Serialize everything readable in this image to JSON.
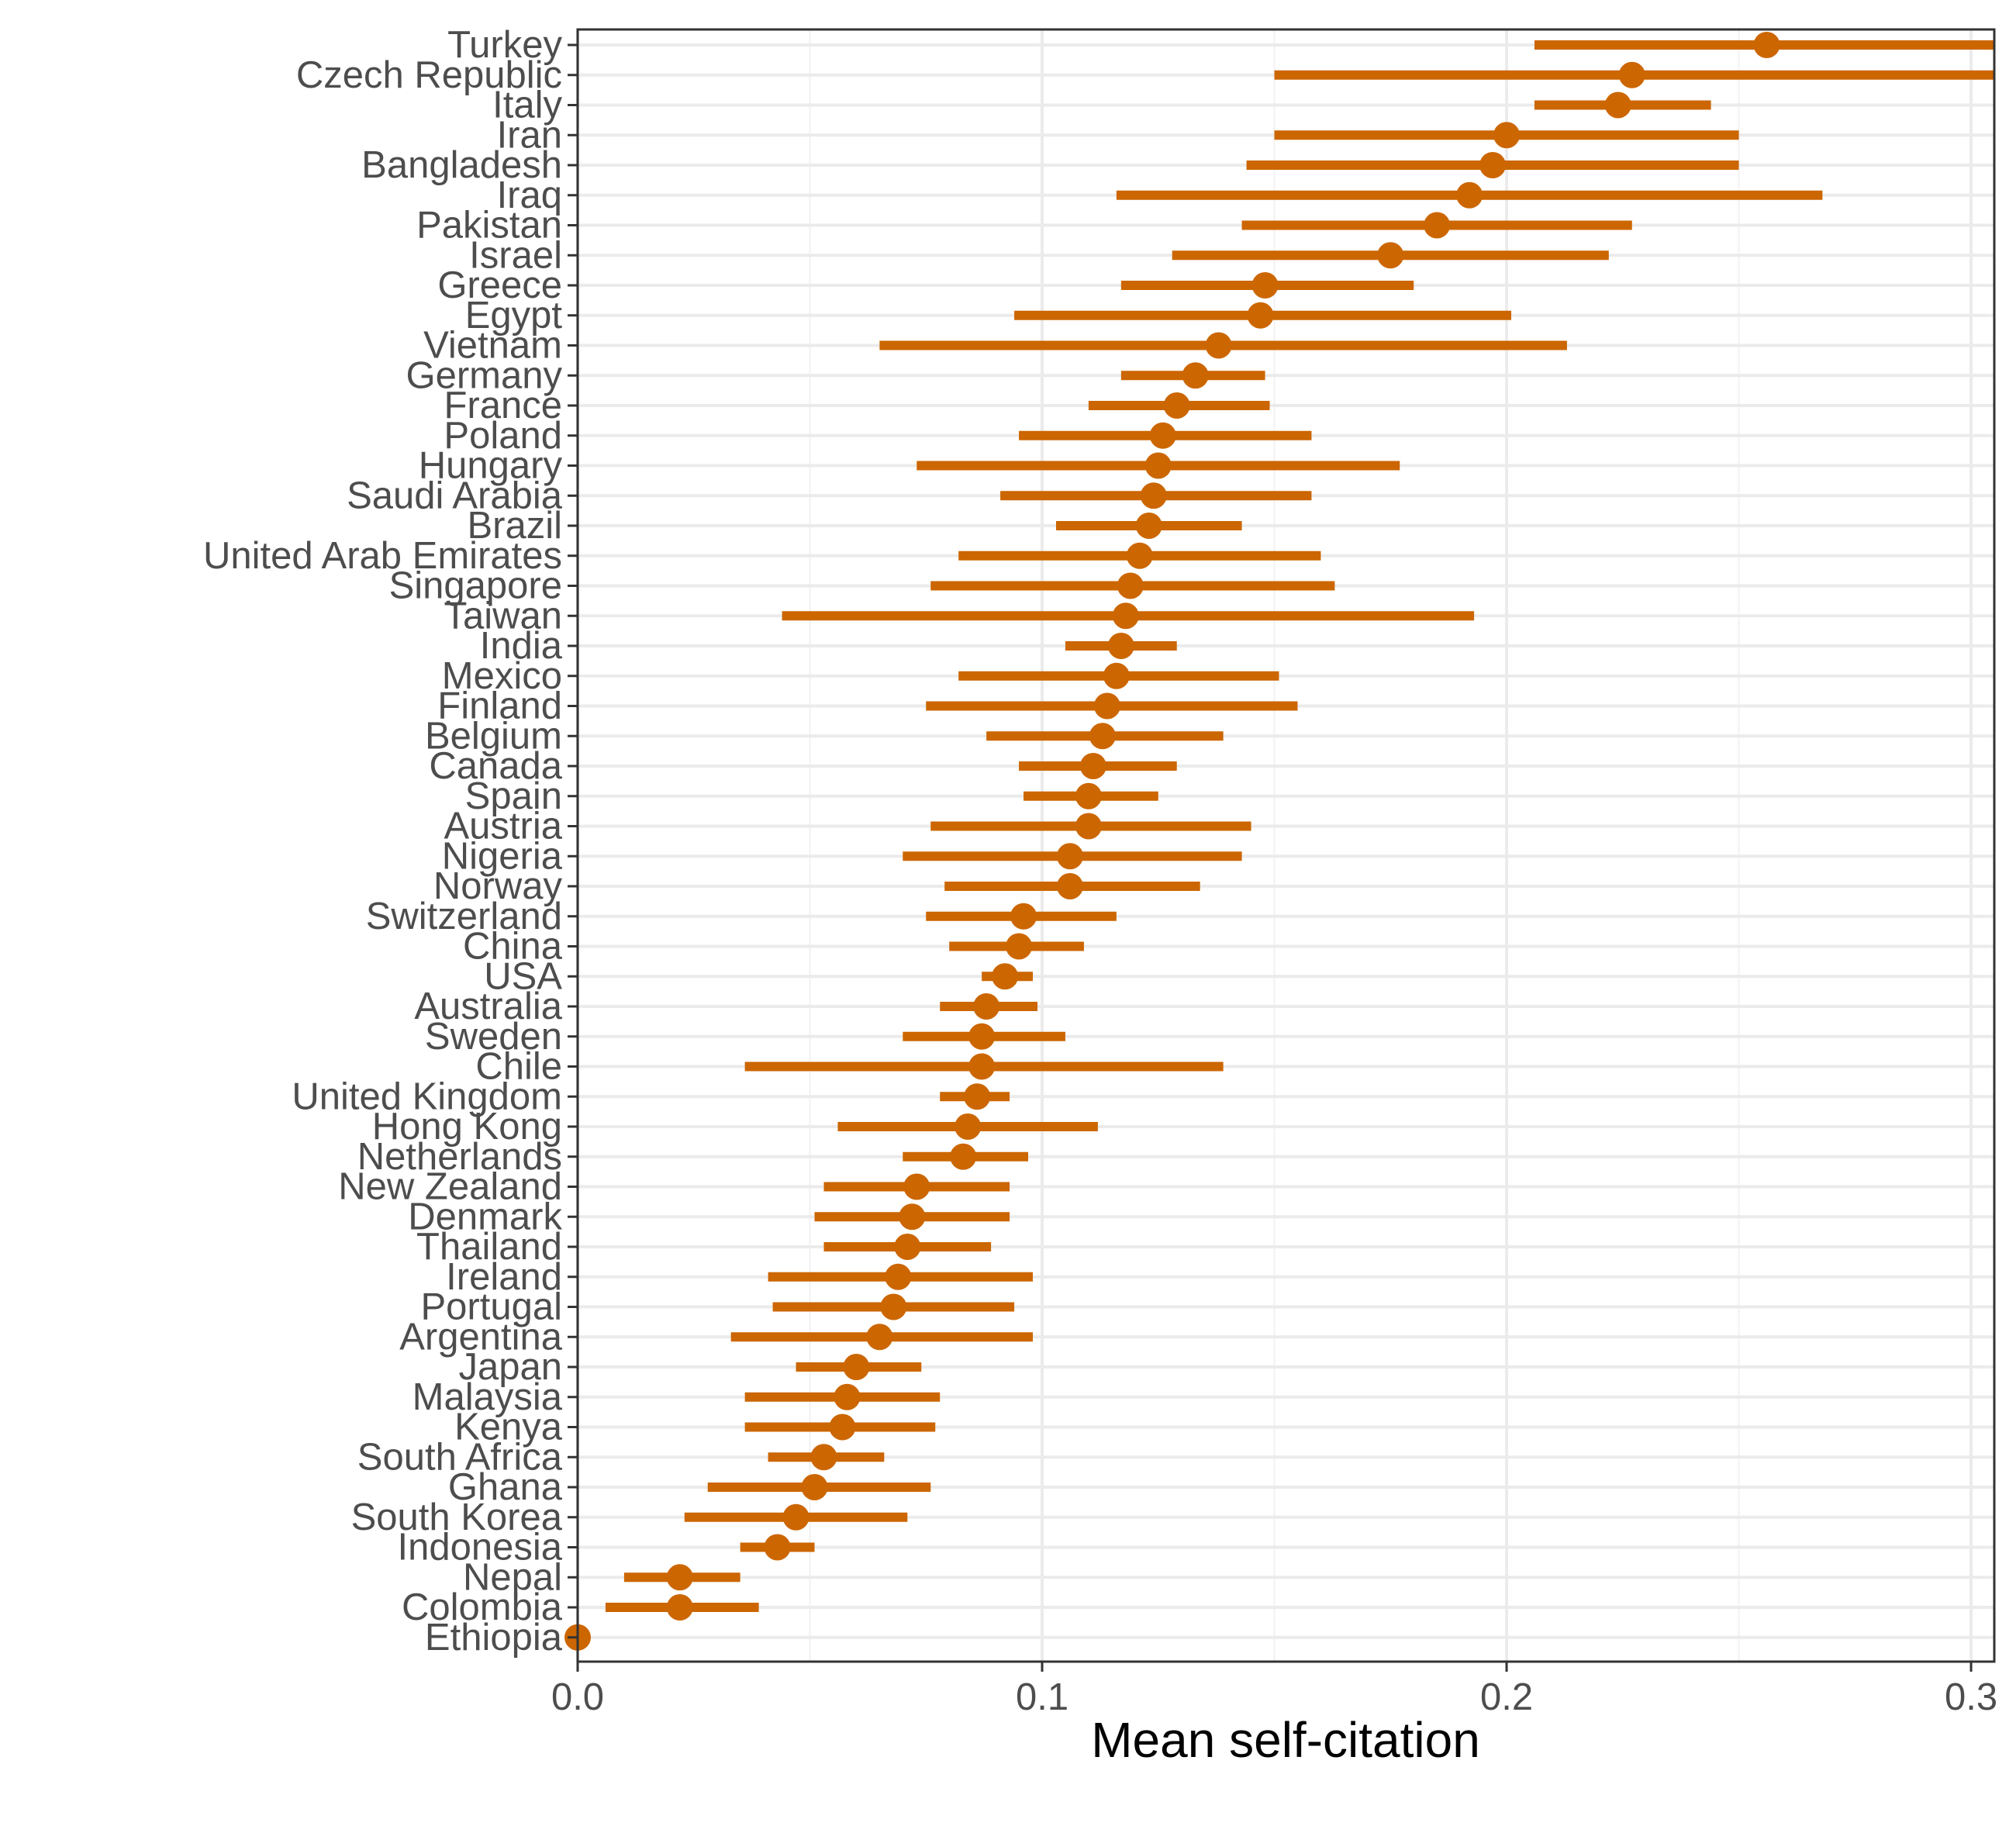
{
  "chart_data": {
    "type": "dot-errorbar",
    "title": "",
    "xlabel": "Mean self-citation",
    "ylabel": "",
    "xlim": [
      0.0,
      0.305
    ],
    "x_ticks": [
      0.0,
      0.1,
      0.2,
      0.3
    ],
    "x_tick_labels": [
      "0.0",
      "0.1",
      "0.2",
      "0.3"
    ],
    "grid": true,
    "legend": "none",
    "colors": {
      "point": "#CC6600",
      "bar": "#CC6600",
      "grid": "#ebebeb",
      "axis": "#333333",
      "text": "#4d4d4d"
    },
    "categories": [
      "Turkey",
      "Czech Republic",
      "Italy",
      "Iran",
      "Bangladesh",
      "Iraq",
      "Pakistan",
      "Israel",
      "Greece",
      "Egypt",
      "Vietnam",
      "Germany",
      "France",
      "Poland",
      "Hungary",
      "Saudi Arabia",
      "Brazil",
      "United Arab Emirates",
      "Singapore",
      "Taiwan",
      "India",
      "Mexico",
      "Finland",
      "Belgium",
      "Canada",
      "Spain",
      "Austria",
      "Nigeria",
      "Norway",
      "Switzerland",
      "China",
      "USA",
      "Australia",
      "Sweden",
      "Chile",
      "United Kingdom",
      "Hong Kong",
      "Netherlands",
      "New Zealand",
      "Denmark",
      "Thailand",
      "Ireland",
      "Portugal",
      "Argentina",
      "Japan",
      "Malaysia",
      "Kenya",
      "South Africa",
      "Ghana",
      "South Korea",
      "Indonesia",
      "Nepal",
      "Colombia",
      "Ethiopia"
    ],
    "values": [
      0.256,
      0.227,
      0.224,
      0.2,
      0.197,
      0.192,
      0.185,
      0.175,
      0.148,
      0.147,
      0.138,
      0.133,
      0.129,
      0.126,
      0.125,
      0.124,
      0.123,
      0.121,
      0.119,
      0.118,
      0.117,
      0.116,
      0.114,
      0.113,
      0.111,
      0.11,
      0.11,
      0.106,
      0.106,
      0.096,
      0.095,
      0.092,
      0.088,
      0.087,
      0.087,
      0.086,
      0.084,
      0.083,
      0.073,
      0.072,
      0.071,
      0.069,
      0.068,
      0.065,
      0.06,
      0.058,
      0.057,
      0.053,
      0.051,
      0.047,
      0.043,
      0.022,
      0.022,
      0.0
    ],
    "lower": [
      0.206,
      0.15,
      0.206,
      0.15,
      0.144,
      0.116,
      0.143,
      0.128,
      0.117,
      0.094,
      0.065,
      0.117,
      0.11,
      0.095,
      0.073,
      0.091,
      0.103,
      0.082,
      0.076,
      0.044,
      0.105,
      0.082,
      0.075,
      0.088,
      0.095,
      0.096,
      0.076,
      0.07,
      0.079,
      0.075,
      0.08,
      0.087,
      0.078,
      0.07,
      0.036,
      0.078,
      0.056,
      0.07,
      0.053,
      0.051,
      0.053,
      0.041,
      0.042,
      0.033,
      0.047,
      0.036,
      0.036,
      0.041,
      0.028,
      0.023,
      0.035,
      0.01,
      0.006,
      0.0
    ],
    "upper": [
      0.305,
      0.305,
      0.244,
      0.25,
      0.25,
      0.268,
      0.227,
      0.222,
      0.18,
      0.201,
      0.213,
      0.148,
      0.149,
      0.158,
      0.177,
      0.158,
      0.143,
      0.16,
      0.163,
      0.193,
      0.129,
      0.151,
      0.155,
      0.139,
      0.129,
      0.125,
      0.145,
      0.143,
      0.134,
      0.116,
      0.109,
      0.098,
      0.099,
      0.105,
      0.139,
      0.093,
      0.112,
      0.097,
      0.093,
      0.093,
      0.089,
      0.098,
      0.094,
      0.098,
      0.074,
      0.078,
      0.077,
      0.066,
      0.076,
      0.071,
      0.051,
      0.035,
      0.039,
      0.0
    ]
  }
}
